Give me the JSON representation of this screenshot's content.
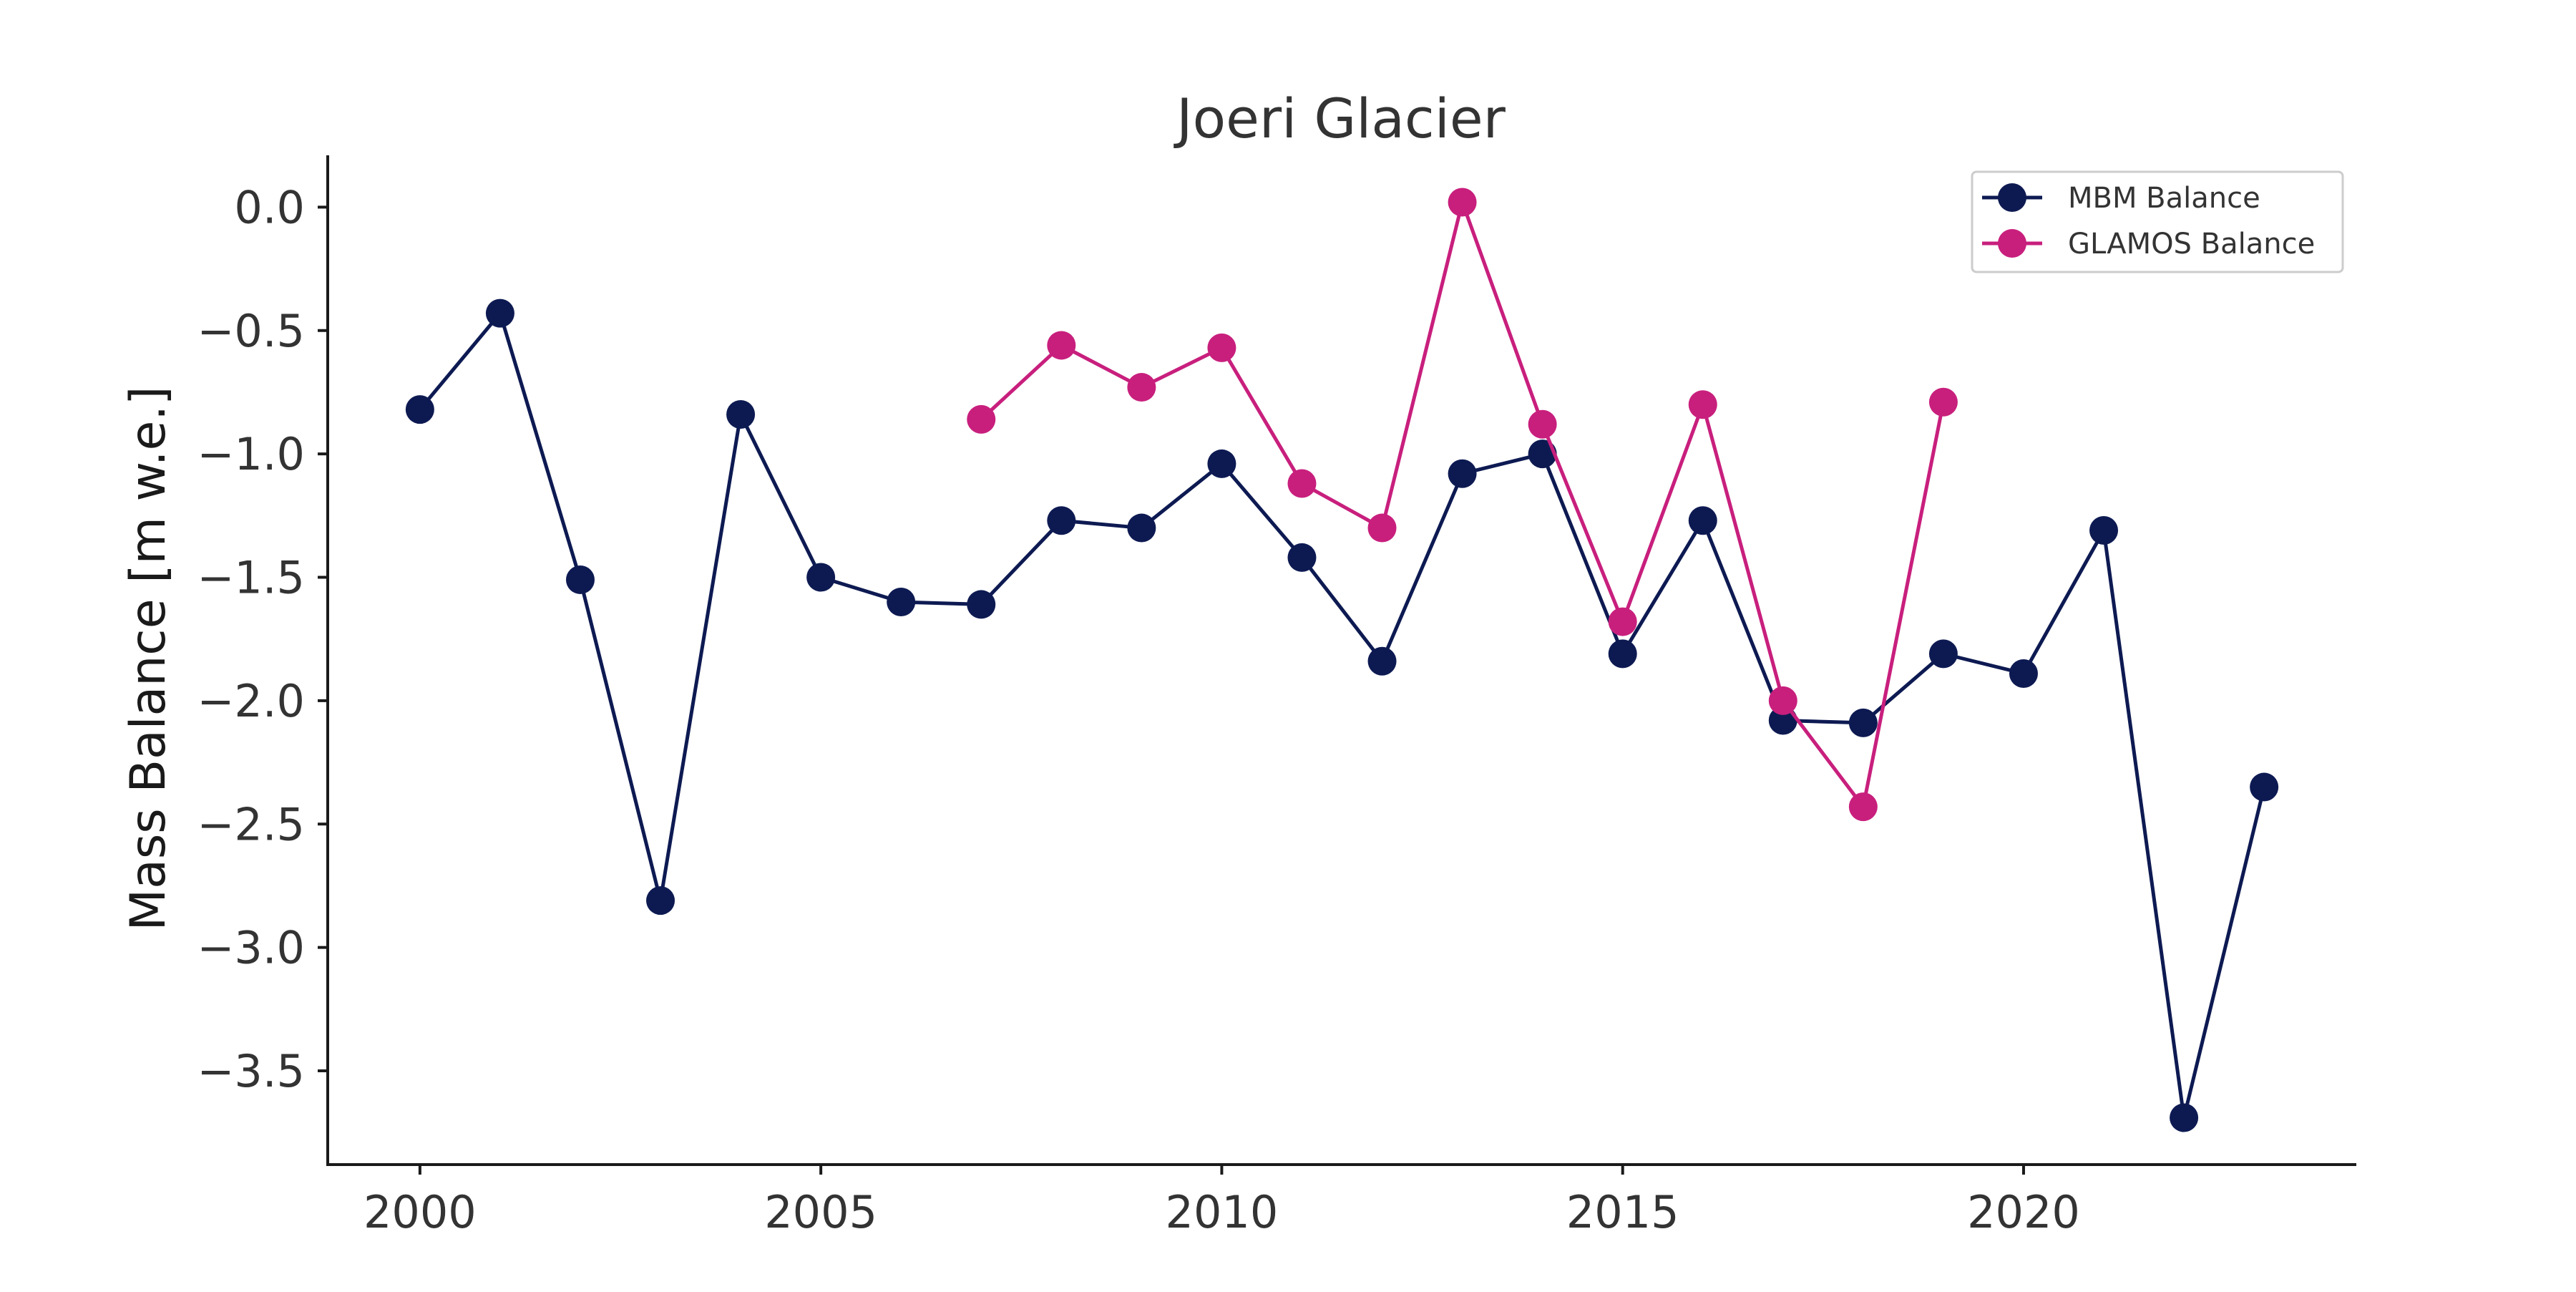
{
  "chart_data": {
    "type": "line",
    "title": "Joeri Glacier",
    "xlabel": "",
    "ylabel": "Mass Balance [m w.e.]",
    "xlim": [
      1998.85,
      2024.15
    ],
    "ylim": [
      -3.88,
      0.21
    ],
    "xticks": [
      2000,
      2005,
      2010,
      2015,
      2020
    ],
    "xtick_labels": [
      "2000",
      "2005",
      "2010",
      "2015",
      "2020"
    ],
    "yticks": [
      0.0,
      -0.5,
      -1.0,
      -1.5,
      -2.0,
      -2.5,
      -3.0,
      -3.5
    ],
    "ytick_labels": [
      "0.0",
      "−0.5",
      "−1.0",
      "−1.5",
      "−2.0",
      "−2.5",
      "−3.0",
      "−3.5"
    ],
    "grid": false,
    "legend_position": "top-right",
    "series": [
      {
        "name": "MBM Balance",
        "color": "#0d1a52",
        "x": [
          2000,
          2001,
          2002,
          2003,
          2004,
          2005,
          2006,
          2007,
          2008,
          2009,
          2010,
          2011,
          2012,
          2013,
          2014,
          2015,
          2016,
          2017,
          2018,
          2019,
          2020,
          2021,
          2022,
          2023
        ],
        "values": [
          -0.82,
          -0.43,
          -1.51,
          -2.81,
          -0.84,
          -1.5,
          -1.6,
          -1.61,
          -1.27,
          -1.3,
          -1.04,
          -1.42,
          -1.84,
          -1.08,
          -1.0,
          -1.81,
          -1.27,
          -2.08,
          -2.09,
          -1.81,
          -1.89,
          -1.31,
          -3.69,
          -2.35
        ]
      },
      {
        "name": "GLAMOS Balance",
        "color": "#c81f7d",
        "x": [
          2007,
          2008,
          2009,
          2010,
          2011,
          2012,
          2013,
          2014,
          2015,
          2016,
          2017,
          2018,
          2019
        ],
        "values": [
          -0.86,
          -0.56,
          -0.73,
          -0.57,
          -1.12,
          -1.3,
          0.02,
          -0.88,
          -1.68,
          -0.8,
          -2.0,
          -2.43,
          -0.79
        ]
      }
    ]
  }
}
